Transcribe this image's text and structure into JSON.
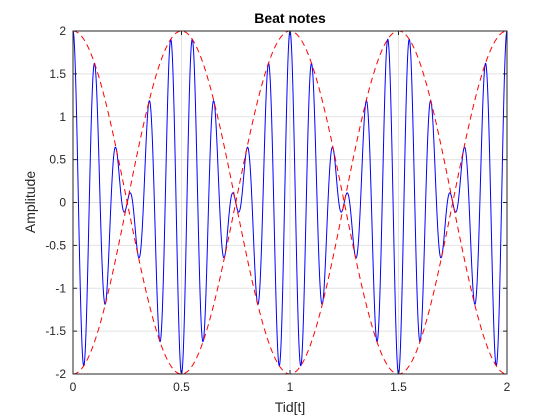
{
  "chart_data": {
    "type": "line",
    "title": "Beat notes",
    "xlabel": "Tid[t]",
    "ylabel": "Amplitude",
    "xlim": [
      0,
      2
    ],
    "ylim": [
      -2,
      2
    ],
    "x_ticks": [
      "0",
      "0.5",
      "1",
      "1.5",
      "2"
    ],
    "y_ticks": [
      "2",
      "1.5",
      "1",
      "0.5",
      "0",
      "-0.5",
      "-1",
      "-1.5",
      "-2"
    ],
    "grid": true,
    "series": [
      {
        "style": "solid",
        "color": "#0000ff",
        "function": "2*cos(2*pi*1*t)*cos(2*pi*10*t)"
      },
      {
        "style": "dashed",
        "color": "#ff0000",
        "function": "2*cos(2*pi*1*t)"
      },
      {
        "style": "dashed",
        "color": "#ff0000",
        "function": "-2*cos(2*pi*1*t)"
      }
    ]
  }
}
